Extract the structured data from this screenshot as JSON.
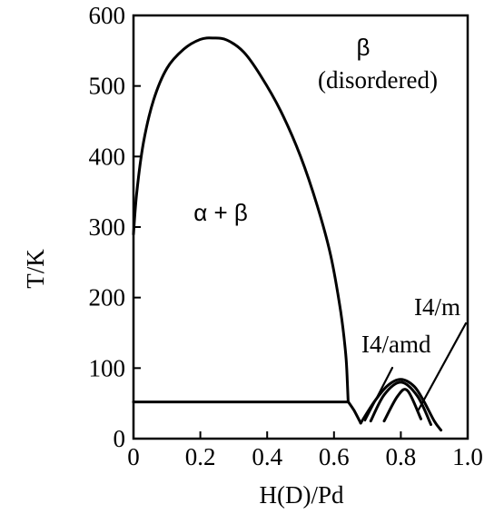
{
  "chart_data": {
    "type": "line",
    "xlabel": "H(D)/Pd",
    "ylabel": "T/K",
    "xlim": [
      0,
      1.0
    ],
    "ylim": [
      0,
      600
    ],
    "xticks": [
      "0",
      "0.2",
      "0.4",
      "0.6",
      "0.8",
      "1.0"
    ],
    "yticks": [
      "0",
      "100",
      "200",
      "300",
      "400",
      "500",
      "600"
    ],
    "annotations": {
      "beta": "β",
      "disordered": "(disordered)",
      "alpha_beta": "α + β",
      "i4amd": "I4/amd",
      "i4m": "I4/m"
    },
    "series": [
      {
        "x": [
          0.0,
          0.01,
          0.03,
          0.06,
          0.1,
          0.15,
          0.2,
          0.24,
          0.28,
          0.33,
          0.38,
          0.44,
          0.5,
          0.55,
          0.59,
          0.62,
          0.635,
          0.64,
          0.642,
          0.643
        ],
        "y": [
          290,
          350,
          420,
          480,
          525,
          552,
          566,
          568,
          565,
          548,
          515,
          465,
          400,
          330,
          260,
          180,
          120,
          80,
          55,
          52
        ]
      },
      {
        "x": [
          0.0,
          0.643
        ],
        "y": [
          52,
          52
        ]
      },
      {
        "x": [
          0.643,
          0.66,
          0.68
        ],
        "y": [
          52,
          40,
          22
        ]
      },
      {
        "x": [
          0.68,
          0.72,
          0.76,
          0.8,
          0.84,
          0.87,
          0.9,
          0.92
        ],
        "y": [
          22,
          52,
          75,
          84,
          74,
          52,
          25,
          12
        ]
      },
      {
        "x": [
          0.71,
          0.75,
          0.8,
          0.85,
          0.89
        ],
        "y": [
          25,
          62,
          80,
          60,
          20
        ]
      },
      {
        "x": [
          0.75,
          0.79,
          0.82,
          0.86
        ],
        "y": [
          25,
          60,
          68,
          28
        ]
      }
    ],
    "grid": false,
    "legend": "none"
  }
}
